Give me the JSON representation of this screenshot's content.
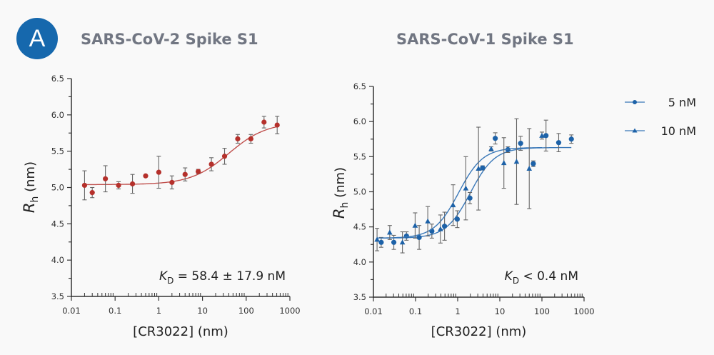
{
  "badge": {
    "label": "A",
    "color": "#1668ad"
  },
  "chart_data": [
    {
      "type": "scatter",
      "title": "SARS-CoV-2 Spike S1",
      "xlabel": "[CR3022] (nm)",
      "ylabel": "Rh (nm)",
      "ylabel_main": "R",
      "ylabel_sub": "h",
      "ylabel_unit": " (nm)",
      "xscale": "log",
      "xlim": [
        0.01,
        1000
      ],
      "ylim": [
        3.5,
        6.5
      ],
      "xticks": [
        "0.01",
        "0.1",
        "1",
        "10",
        "100",
        "1000"
      ],
      "yticks": [
        "3.5",
        "4.0",
        "4.5",
        "5.0",
        "5.5",
        "6.0",
        "6.5"
      ],
      "annotation": {
        "main": "K",
        "sub": "D",
        "text": " = 58.4 ± 17.9 nM"
      },
      "series": [
        {
          "name": "SARS-CoV-2",
          "color": "#b5302b",
          "marker": "circle",
          "x": [
            0.02,
            0.03,
            0.06,
            0.12,
            0.25,
            0.5,
            1,
            2,
            4,
            8,
            16,
            32,
            64,
            128,
            256,
            512
          ],
          "y": [
            5.03,
            4.93,
            5.12,
            5.03,
            5.05,
            5.16,
            5.21,
            5.07,
            5.18,
            5.22,
            5.32,
            5.43,
            5.67,
            5.67,
            5.9,
            5.86
          ],
          "err": [
            0.2,
            0.07,
            0.18,
            0.05,
            0.13,
            0,
            0.22,
            0.09,
            0.09,
            0.03,
            0.09,
            0.11,
            0.06,
            0.06,
            0.08,
            0.12
          ],
          "fit": {
            "bottom": 5.04,
            "top": 5.9,
            "ec50": 40,
            "hill": 1.0
          }
        }
      ]
    },
    {
      "type": "scatter",
      "title": "SARS-CoV-1 Spike S1",
      "xlabel": "[CR3022] (nm)",
      "ylabel": "Rh (nm)",
      "ylabel_main": "R",
      "ylabel_sub": "h",
      "ylabel_unit": " (nm)",
      "xscale": "log",
      "xlim": [
        0.01,
        1000
      ],
      "ylim": [
        3.5,
        6.5
      ],
      "xticks": [
        "0.01",
        "0.1",
        "1",
        "10",
        "100",
        "1000"
      ],
      "yticks": [
        "3.5",
        "4.0",
        "4.5",
        "5.0",
        "5.5",
        "6.0",
        "6.5"
      ],
      "annotation": {
        "main": "K",
        "sub": "D",
        "text": " < 0.4 nM"
      },
      "legend": {
        "position": "top-right",
        "entries": [
          "5 nM",
          "10 nM"
        ]
      },
      "series": [
        {
          "name": "5 nM",
          "color": "#1d62a8",
          "marker": "circle",
          "x": [
            0.0153,
            0.0305,
            0.061,
            0.122,
            0.244,
            0.488,
            0.977,
            1.95,
            3.9,
            7.8,
            15.6,
            31.2,
            62.5,
            125,
            250,
            500
          ],
          "y": [
            4.28,
            4.28,
            4.37,
            4.35,
            4.44,
            4.51,
            4.61,
            4.91,
            5.34,
            5.76,
            5.6,
            5.69,
            5.4,
            5.8,
            5.7,
            5.75
          ],
          "err": [
            0.07,
            0.1,
            0.06,
            0.17,
            0.1,
            0.2,
            0.12,
            0.08,
            0.03,
            0.08,
            0.04,
            0.1,
            0.04,
            0.22,
            0.13,
            0.06
          ],
          "fit": {
            "bottom": 4.34,
            "top": 5.63,
            "ec50": 2.0,
            "hill": 1.5
          }
        },
        {
          "name": "10 nM",
          "color": "#1d62a8",
          "marker": "triangle",
          "x": [
            0.0122,
            0.0244,
            0.0488,
            0.0977,
            0.195,
            0.39,
            0.78,
            1.56,
            3.12,
            6.25,
            12.5,
            25,
            50,
            100
          ],
          "y": [
            4.32,
            4.42,
            4.28,
            4.52,
            4.58,
            4.47,
            4.81,
            5.05,
            5.33,
            5.61,
            5.41,
            5.43,
            5.33,
            5.8
          ],
          "err": [
            0.16,
            0.1,
            0.15,
            0.18,
            0.21,
            0.2,
            0.29,
            0.45,
            0.59,
            0.03,
            0.36,
            0.61,
            0.57,
            0.05
          ],
          "fit": {
            "bottom": 4.34,
            "top": 5.63,
            "ec50": 1.05,
            "hill": 1.5
          }
        }
      ]
    }
  ]
}
